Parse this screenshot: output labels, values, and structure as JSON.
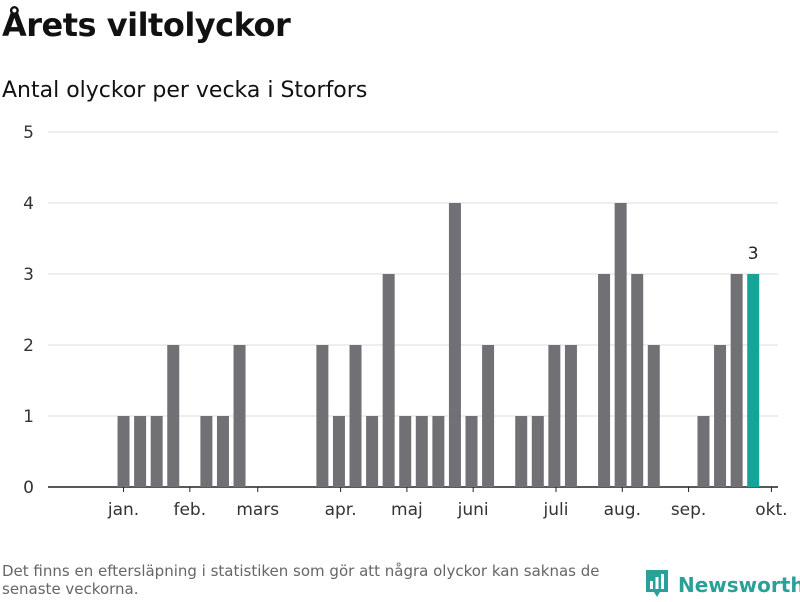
{
  "title": "Årets viltolyckor",
  "subtitle": "Antal olyckor per vecka i Storfors",
  "chart_data": {
    "type": "bar",
    "title": "Årets viltolyckor",
    "subtitle": "Antal olyckor per vecka i Storfors",
    "xlabel": "",
    "ylabel": "",
    "ylim": [
      0,
      5
    ],
    "yticks": [
      0,
      1,
      2,
      3,
      4,
      5
    ],
    "grid": true,
    "x_unit": "vecka",
    "weeks": [
      1,
      2,
      3,
      4,
      5,
      6,
      7,
      8,
      9,
      10,
      11,
      12,
      13,
      14,
      15,
      16,
      17,
      18,
      19,
      20,
      21,
      22,
      23,
      24,
      25,
      26,
      27,
      28,
      29,
      30,
      31,
      32,
      33,
      34,
      35,
      36,
      37,
      38,
      39,
      40,
      41
    ],
    "values": [
      0,
      0,
      1,
      1,
      1,
      2,
      0,
      1,
      1,
      2,
      0,
      0,
      0,
      0,
      2,
      1,
      2,
      1,
      3,
      1,
      1,
      1,
      4,
      1,
      2,
      0,
      1,
      1,
      2,
      2,
      0,
      3,
      4,
      3,
      2,
      0,
      0,
      1,
      2,
      3,
      3
    ],
    "month_labels": [
      {
        "label": "jan.",
        "week": 3
      },
      {
        "label": "feb.",
        "week": 7
      },
      {
        "label": "mars",
        "week": 11.1
      },
      {
        "label": "apr.",
        "week": 16.1
      },
      {
        "label": "maj",
        "week": 20.1
      },
      {
        "label": "juni",
        "week": 24.1
      },
      {
        "label": "juli",
        "week": 29.1
      },
      {
        "label": "aug.",
        "week": 33.1
      },
      {
        "label": "sep.",
        "week": 37.1
      },
      {
        "label": "okt.",
        "week": 42.1
      }
    ],
    "highlight": {
      "week": 41,
      "label": "3"
    },
    "colors": {
      "bar": "#717075",
      "highlight": "#16a39a",
      "grid": "#dddddd",
      "axis": "#222222"
    }
  },
  "footnote": "Det finns en eftersläpning i statistiken som gör att några olyckor kan saknas de senaste veckorna.",
  "brand": {
    "name": "Newsworthy",
    "logo_icon": "bar-chart-pin-icon",
    "color": "#2aa198"
  }
}
